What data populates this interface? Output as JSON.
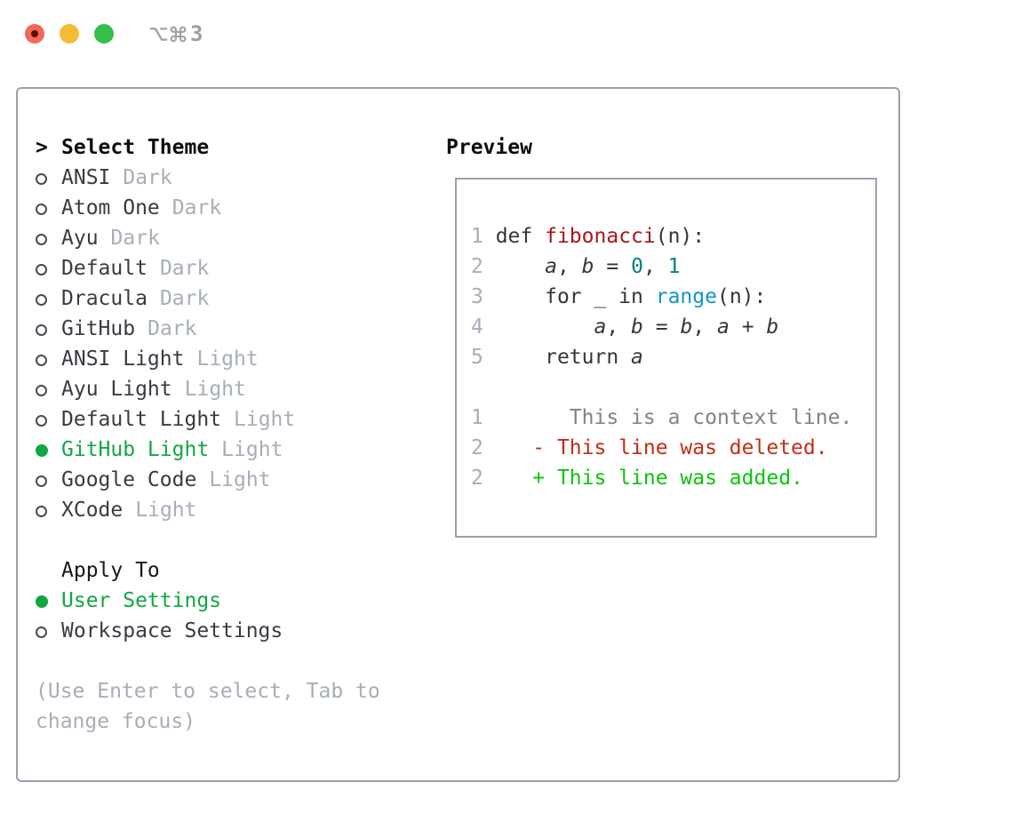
{
  "window": {
    "shortcut": {
      "label": "⌥⌘3",
      "number": "3"
    }
  },
  "colors": {
    "selection_green": "#10a742",
    "added_green": "#0dc30d",
    "deleted_red": "#c32d16",
    "function_red": "#a81815",
    "builtin_blue": "#1193ce",
    "number_teal": "#0a7e80",
    "muted_gray": "#a7aeb8",
    "border_gray": "#99a1ab",
    "traffic_red": "#f2685c",
    "traffic_yellow": "#f5bb37",
    "traffic_green": "#34c14a"
  },
  "theme_picker": {
    "prompt": ">",
    "title": "Select Theme",
    "items": [
      {
        "name": "ANSI",
        "variant": "Dark",
        "selected": false
      },
      {
        "name": "Atom One",
        "variant": "Dark",
        "selected": false
      },
      {
        "name": "Ayu",
        "variant": "Dark",
        "selected": false
      },
      {
        "name": "Default",
        "variant": "Dark",
        "selected": false
      },
      {
        "name": "Dracula",
        "variant": "Dark",
        "selected": false
      },
      {
        "name": "GitHub",
        "variant": "Dark",
        "selected": false
      },
      {
        "name": "ANSI Light",
        "variant": "Light",
        "selected": false
      },
      {
        "name": "Ayu Light",
        "variant": "Light",
        "selected": false
      },
      {
        "name": "Default Light",
        "variant": "Light",
        "selected": false
      },
      {
        "name": "GitHub Light",
        "variant": "Light",
        "selected": true
      },
      {
        "name": "Google Code",
        "variant": "Light",
        "selected": false
      },
      {
        "name": "XCode",
        "variant": "Light",
        "selected": false
      }
    ],
    "apply_to": {
      "title": "Apply To",
      "options": [
        {
          "label": "User Settings",
          "selected": true
        },
        {
          "label": "Workspace Settings",
          "selected": false
        }
      ]
    },
    "hint_lines": [
      "(Use Enter to select, Tab to",
      "change focus)"
    ]
  },
  "preview": {
    "title": "Preview",
    "code_block": {
      "lines": [
        [
          {
            "t": "1",
            "s": "ln"
          },
          {
            "t": " def ",
            "s": "code"
          },
          {
            "t": "fibonacci",
            "s": "func"
          },
          {
            "t": "(n):",
            "s": "code"
          }
        ],
        [
          {
            "t": "2",
            "s": "ln"
          },
          {
            "t": "     ",
            "s": "code"
          },
          {
            "t": "a",
            "s": "var"
          },
          {
            "t": ", ",
            "s": "code"
          },
          {
            "t": "b",
            "s": "var"
          },
          {
            "t": " = ",
            "s": "code"
          },
          {
            "t": "0",
            "s": "numlit"
          },
          {
            "t": ", ",
            "s": "code"
          },
          {
            "t": "1",
            "s": "numlit"
          }
        ],
        [
          {
            "t": "3",
            "s": "ln"
          },
          {
            "t": "     for _ in ",
            "s": "code"
          },
          {
            "t": "range",
            "s": "builtin"
          },
          {
            "t": "(n):",
            "s": "code"
          }
        ],
        [
          {
            "t": "4",
            "s": "ln"
          },
          {
            "t": "         ",
            "s": "code"
          },
          {
            "t": "a",
            "s": "var"
          },
          {
            "t": ", ",
            "s": "code"
          },
          {
            "t": "b",
            "s": "var"
          },
          {
            "t": " = ",
            "s": "code"
          },
          {
            "t": "b",
            "s": "var"
          },
          {
            "t": ", ",
            "s": "code"
          },
          {
            "t": "a",
            "s": "var"
          },
          {
            "t": " + ",
            "s": "code"
          },
          {
            "t": "b",
            "s": "var"
          }
        ],
        [
          {
            "t": "5",
            "s": "ln"
          },
          {
            "t": "     return ",
            "s": "code"
          },
          {
            "t": "a",
            "s": "var"
          }
        ]
      ]
    },
    "diff_block": {
      "lines": [
        [
          {
            "t": "1",
            "s": "ln"
          },
          {
            "t": "       This is a context line.",
            "s": "context"
          }
        ],
        [
          {
            "t": "2",
            "s": "ln"
          },
          {
            "t": "    ",
            "s": "code"
          },
          {
            "t": "- This line was deleted.",
            "s": "del"
          }
        ],
        [
          {
            "t": "2",
            "s": "ln"
          },
          {
            "t": "    ",
            "s": "code"
          },
          {
            "t": "+ This line was added.",
            "s": "add"
          }
        ]
      ]
    }
  }
}
